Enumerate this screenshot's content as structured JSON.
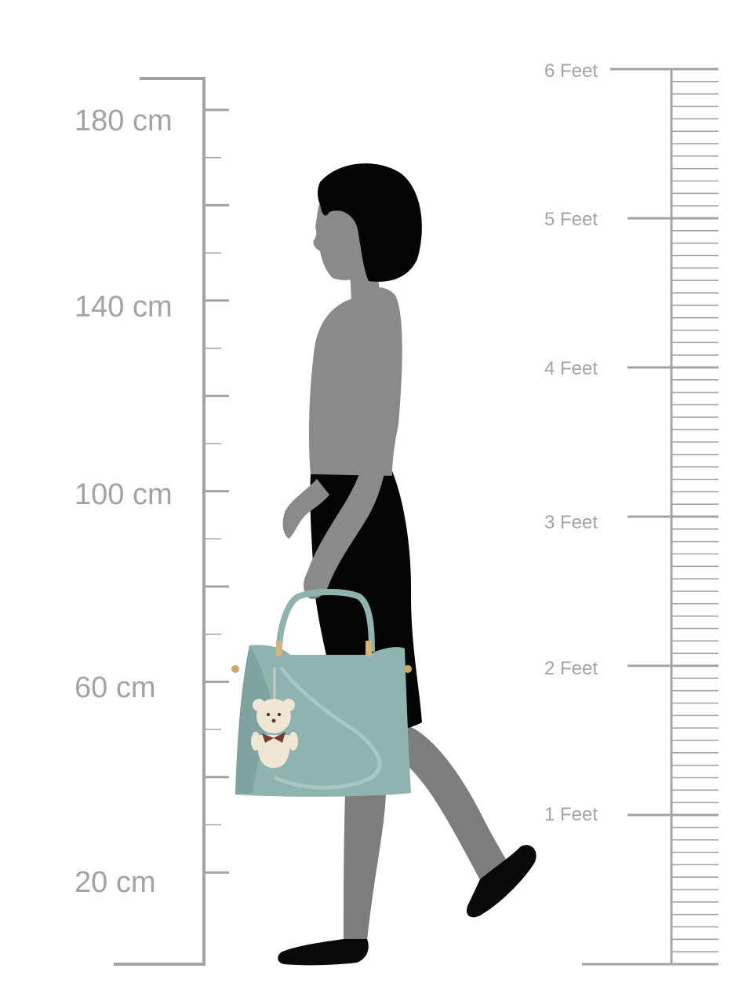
{
  "cm_scale": {
    "labels": [
      "180 cm",
      "140 cm",
      "100 cm",
      "60 cm",
      "20 cm"
    ]
  },
  "feet_scale": {
    "labels": [
      "6 Feet",
      "5 Feet",
      "4 Feet",
      "3 Feet",
      "2 Feet",
      "1 Feet"
    ]
  },
  "illustration": {
    "subject": "silhouette-woman-walking",
    "product": "handbag",
    "colors": {
      "scale": "#a3a3a3",
      "hair_and_dress": "#050505",
      "skin": "#8a8a8a",
      "bag": "#8fb3ae",
      "charm": "#efe6d4"
    }
  }
}
